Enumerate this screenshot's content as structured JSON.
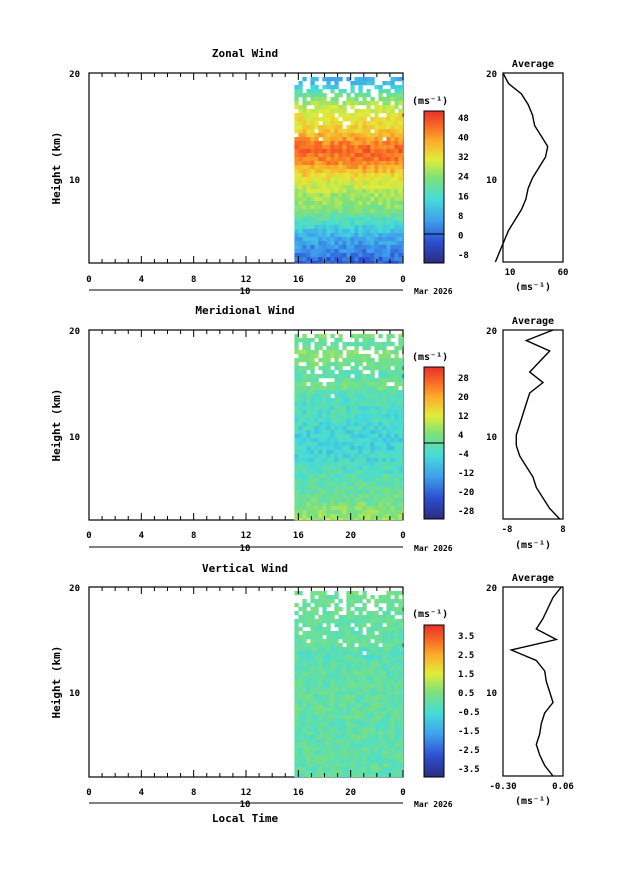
{
  "figure": {
    "date_label": "Mar 2026",
    "local_time_label": "Local Time",
    "day_label": "10",
    "x_ticks": [
      "0",
      "4",
      "8",
      "12",
      "16",
      "20",
      "0"
    ],
    "height_ticks": [
      "20",
      "10"
    ],
    "height_label": "Height (km)",
    "unit_label": "(ms⁻¹)",
    "average_title": "Average"
  },
  "chart_data": [
    {
      "type": "heatmap",
      "title": "Zonal Wind",
      "xlabel": "",
      "ylabel": "Height (km)",
      "x_range_hours": [
        0,
        24
      ],
      "data_start_hour": 15.7,
      "ylim": [
        2,
        20
      ],
      "colorbar": {
        "label": "(ms⁻¹)",
        "ticks": [
          -8,
          0,
          8,
          16,
          24,
          32,
          40,
          48
        ],
        "range": [
          -12,
          52
        ],
        "zero_line": 0
      },
      "profile_z": [
        2,
        3,
        4,
        5,
        6,
        7,
        8,
        9,
        10,
        11,
        12,
        13,
        14,
        15,
        16,
        17,
        18,
        19,
        20
      ],
      "profile_values": [
        -2,
        2,
        6,
        10,
        16,
        22,
        26,
        28,
        32,
        38,
        44,
        46,
        40,
        34,
        32,
        28,
        22,
        10,
        5
      ]
    },
    {
      "type": "heatmap",
      "title": "Meridional Wind",
      "xlabel": "",
      "ylabel": "Height (km)",
      "x_range_hours": [
        0,
        24
      ],
      "data_start_hour": 15.7,
      "ylim": [
        2,
        20
      ],
      "colorbar": {
        "label": "(ms⁻¹)",
        "ticks": [
          -28,
          -20,
          -12,
          -4,
          4,
          12,
          20,
          28
        ],
        "range": [
          -32,
          32
        ],
        "zero_line": 0
      },
      "profile_z": [
        2,
        3,
        4,
        5,
        6,
        7,
        8,
        9,
        10,
        11,
        12,
        13,
        14,
        15,
        16,
        17,
        18,
        19,
        20
      ],
      "profile_values": [
        7,
        4,
        2,
        0,
        -1,
        -3,
        -5,
        -6,
        -6,
        -5,
        -4,
        -3,
        -2,
        2,
        -2,
        1,
        4,
        -3,
        5
      ]
    },
    {
      "type": "heatmap",
      "title": "Vertical Wind",
      "xlabel": "Local Time",
      "ylabel": "Height (km)",
      "x_range_hours": [
        0,
        24
      ],
      "data_start_hour": 15.7,
      "ylim": [
        2,
        20
      ],
      "colorbar": {
        "label": "(ms⁻¹)",
        "ticks": [
          -3.5,
          -2.5,
          -1.5,
          -0.5,
          0.5,
          1.5,
          2.5,
          3.5
        ],
        "range": [
          -4,
          4
        ]
      },
      "profile_z": [
        2,
        3,
        4,
        5,
        6,
        7,
        8,
        9,
        10,
        11,
        12,
        13,
        14,
        15,
        16,
        17,
        18,
        19,
        20
      ],
      "profile_values": [
        0.0,
        -0.05,
        -0.08,
        -0.1,
        -0.08,
        -0.07,
        -0.05,
        0.0,
        -0.02,
        -0.04,
        -0.05,
        -0.1,
        -0.25,
        0.02,
        -0.1,
        -0.06,
        -0.03,
        0.0,
        0.05
      ]
    }
  ],
  "panels_text": [
    {
      "title": "Zonal Wind",
      "cb_ticks": [
        "48",
        "40",
        "32",
        "24",
        "16",
        "8",
        "0",
        "-8"
      ],
      "avg_ticks": [
        "10",
        "60"
      ]
    },
    {
      "title": "Meridional Wind",
      "cb_ticks": [
        "28",
        "20",
        "12",
        "4",
        "-4",
        "-12",
        "-20",
        "-28"
      ],
      "avg_ticks": [
        "-8",
        "8"
      ]
    },
    {
      "title": "Vertical Wind",
      "cb_ticks": [
        "3.5",
        "2.5",
        "1.5",
        "0.5",
        "-0.5",
        "-1.5",
        "-2.5",
        "-3.5"
      ],
      "avg_ticks": [
        "-0.30",
        "0.06"
      ]
    }
  ]
}
